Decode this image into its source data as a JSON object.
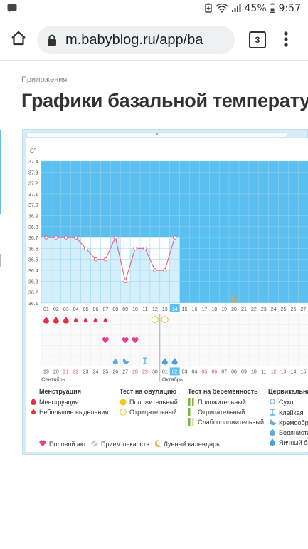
{
  "status_bar": {
    "chat_icon": "chat-bubble-icon",
    "battery_text": "45%",
    "time": "9:57"
  },
  "browser": {
    "url": "m.babyblog.ru/app/ba",
    "tab_count": "3"
  },
  "page": {
    "breadcrumb": "Приложения",
    "title": "Графики базальной температу"
  },
  "chart": {
    "unit_label": "C°",
    "y_ticks": [
      "37.4",
      "37.3",
      "37.2",
      "37.1",
      "37.0",
      "36.9",
      "36.8",
      "36.7",
      "36.6",
      "36.5",
      "36.4",
      "36.3",
      "36.2",
      "36.1"
    ],
    "cycle_days": [
      "01",
      "02",
      "03",
      "04",
      "05",
      "06",
      "07",
      "08",
      "09",
      "10",
      "11",
      "12",
      "13",
      "14",
      "15",
      "16",
      "17",
      "18",
      "19",
      "20",
      "21",
      "22",
      "23",
      "24",
      "25",
      "26",
      "27"
    ],
    "current_day": "14",
    "dates": [
      "19",
      "20",
      "21",
      "22",
      "23",
      "24",
      "25",
      "26",
      "27",
      "28",
      "29",
      "30",
      "01",
      "02",
      "03",
      "04",
      "05",
      "06",
      "07",
      "08",
      "09",
      "10",
      "11",
      "12",
      "13",
      "14",
      "15"
    ],
    "date_colors": [
      "#555",
      "#555",
      "#e04a6a",
      "#e04a6a",
      "#555",
      "#555",
      "#555",
      "#555",
      "#555",
      "#e04a6a",
      "#e04a6a",
      "#555",
      "#555",
      "#555",
      "#555",
      "#555",
      "#e04a6a",
      "#e04a6a",
      "#555",
      "#555",
      "#555",
      "#555",
      "#555",
      "#e04a6a",
      "#e04a6a",
      "#555",
      "#555"
    ],
    "today_date": "02",
    "month_left": "Сентябрь",
    "month_right": "Октябрь",
    "accent_color": "#5bbfef",
    "grid_bg": "#ffffff",
    "line_color": "#e06a8a"
  },
  "chart_data": {
    "type": "line",
    "x": [
      "01",
      "02",
      "03",
      "04",
      "05",
      "06",
      "07",
      "08",
      "09",
      "10",
      "11",
      "12",
      "13",
      "14"
    ],
    "values": [
      36.7,
      36.7,
      36.7,
      36.7,
      36.6,
      36.5,
      36.5,
      36.7,
      36.3,
      36.6,
      36.6,
      36.4,
      36.4,
      36.7
    ],
    "ylim": [
      36.1,
      37.4
    ],
    "xlabel": "",
    "ylabel": "C°",
    "grid": true
  },
  "markers": {
    "menstruation_heavy_days": [
      1,
      2,
      3
    ],
    "menstruation_light_days": [
      4,
      5,
      6,
      7
    ],
    "intercourse_days": [
      7,
      9,
      10
    ],
    "cervical_watery_days": [
      8
    ],
    "cervical_creamy_days": [
      9
    ],
    "cervical_sticky_days": [
      11
    ],
    "cervical_eggwhite_days": [
      13,
      14
    ],
    "ovulation_negative_days": [
      12,
      13
    ],
    "moon_day": 20
  },
  "legend": {
    "menstruation_header": "Менструация",
    "menstruation": "Менструация",
    "spotting": "Небольшие выделения",
    "ovulation_header": "Тест на овуляцию",
    "ovulation_positive": "Положительный",
    "ovulation_negative": "Отрицательный",
    "pregnancy_header": "Тест на беременность",
    "pregnancy_positive": "Положительный",
    "pregnancy_negative": "Отрицательный",
    "pregnancy_weak": "Слабоположительный",
    "cervical_header": "Цервикальная",
    "cervical_dry": "Сухо",
    "cervical_sticky": "Клейкая",
    "cervical_creamy": "Кремообра",
    "cervical_watery": "Водянистая",
    "cervical_eggwhite": "Яичный бел",
    "intercourse": "Половой акт",
    "medication": "Прием лекарств",
    "lunar": "Лунный календарь"
  }
}
